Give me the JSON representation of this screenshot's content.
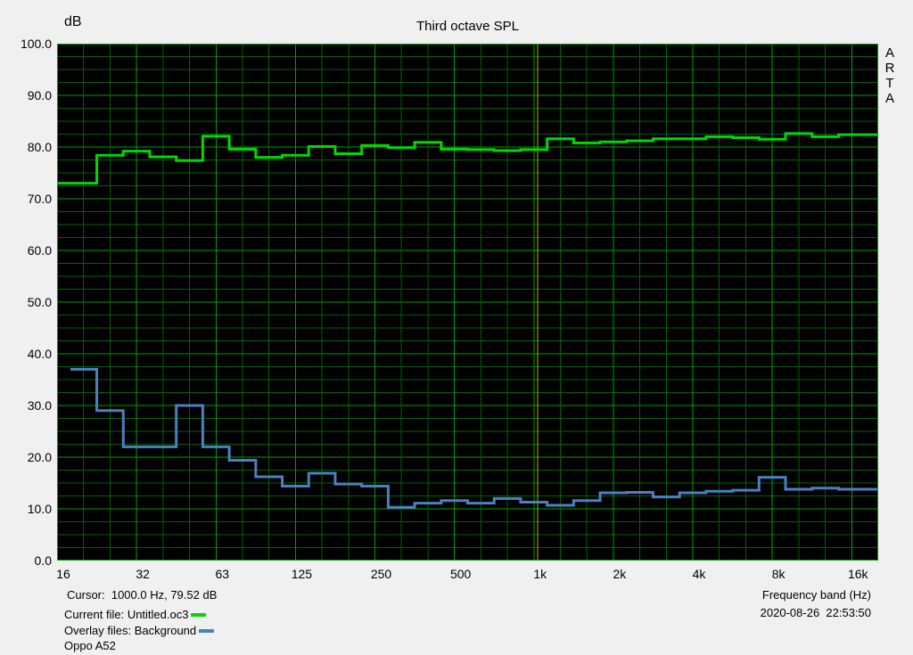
{
  "header": {
    "y_unit": "dB",
    "title": "Third octave SPL"
  },
  "watermark": {
    "letters": [
      "A",
      "R",
      "T",
      "A"
    ]
  },
  "y_axis": {
    "tick_labels": [
      "100.0",
      "90.0",
      "80.0",
      "70.0",
      "60.0",
      "50.0",
      "40.0",
      "30.0",
      "20.0",
      "10.0",
      "0.0"
    ]
  },
  "x_axis": {
    "tick_labels": [
      "16",
      "32",
      "63",
      "125",
      "250",
      "500",
      "1k",
      "2k",
      "4k",
      "8k",
      "16k"
    ],
    "tick_band_indices": [
      0,
      3,
      6,
      9,
      12,
      15,
      18,
      21,
      24,
      27,
      30
    ],
    "axis_label": "Frequency band (Hz)"
  },
  "footer": {
    "cursor_text": "Cursor:  1000.0 Hz, 79.52 dB",
    "current_file_label": "Current file: ",
    "current_file_name": "Untitled.oc3",
    "overlay_files_label": "Overlay files: ",
    "overlay_file_name": "Background",
    "device_note": "Oppo A52",
    "datetime": "2020-08-26  22:53:50"
  },
  "colors": {
    "window_background": "#f0f0f0",
    "plot_background": "#000000",
    "grid_minor": "#006200",
    "grid_major": "#00a000",
    "curve_current": "#00d800",
    "curve_overlay": "#4a80c1",
    "cursor_line": "#bdb600",
    "text": "#000000"
  },
  "chart_data": {
    "type": "bar",
    "style": "third-octave staircase (step) SPL display",
    "title": "Third octave SPL",
    "xlabel": "Frequency band (Hz)",
    "ylabel": "dB",
    "ylim": [
      0,
      100
    ],
    "grid": {
      "horizontal_minor_step_db": 2.5,
      "horizontal_major_step_db": 10,
      "vertical": "one gridline per third-octave band, brighter at labeled bands"
    },
    "legend_position": "bottom-left file list",
    "categories": [
      "16",
      "20",
      "25",
      "31.5",
      "40",
      "50",
      "63",
      "80",
      "100",
      "125",
      "160",
      "200",
      "250",
      "315",
      "400",
      "500",
      "630",
      "800",
      "1000",
      "1250",
      "1600",
      "2000",
      "2500",
      "3150",
      "4000",
      "5000",
      "6300",
      "8000",
      "10000",
      "12500",
      "16000"
    ],
    "series": [
      {
        "name": "Untitled.oc3",
        "color": "#00d800",
        "values": [
          73.0,
          73.0,
          78.4,
          79.2,
          78.1,
          77.4,
          82.1,
          79.6,
          78.0,
          78.4,
          80.1,
          78.7,
          80.3,
          79.9,
          80.9,
          79.6,
          79.5,
          79.3,
          79.5,
          81.6,
          80.8,
          81.0,
          81.2,
          81.6,
          81.6,
          82.0,
          81.8,
          81.5,
          82.6,
          82.0,
          82.4
        ]
      },
      {
        "name": "Background",
        "color": "#4a80c1",
        "values": [
          null,
          37.0,
          29.0,
          22.0,
          22.0,
          30.0,
          22.0,
          19.4,
          16.2,
          14.4,
          16.9,
          14.8,
          14.4,
          10.3,
          11.1,
          11.6,
          11.1,
          12.0,
          11.3,
          10.7,
          11.6,
          13.1,
          13.2,
          12.3,
          13.1,
          13.4,
          13.6,
          16.1,
          13.8,
          14.0,
          13.8
        ]
      }
    ],
    "cursor": {
      "frequency_hz": 1000.0,
      "value_db": 79.52,
      "band_index": 18
    }
  }
}
